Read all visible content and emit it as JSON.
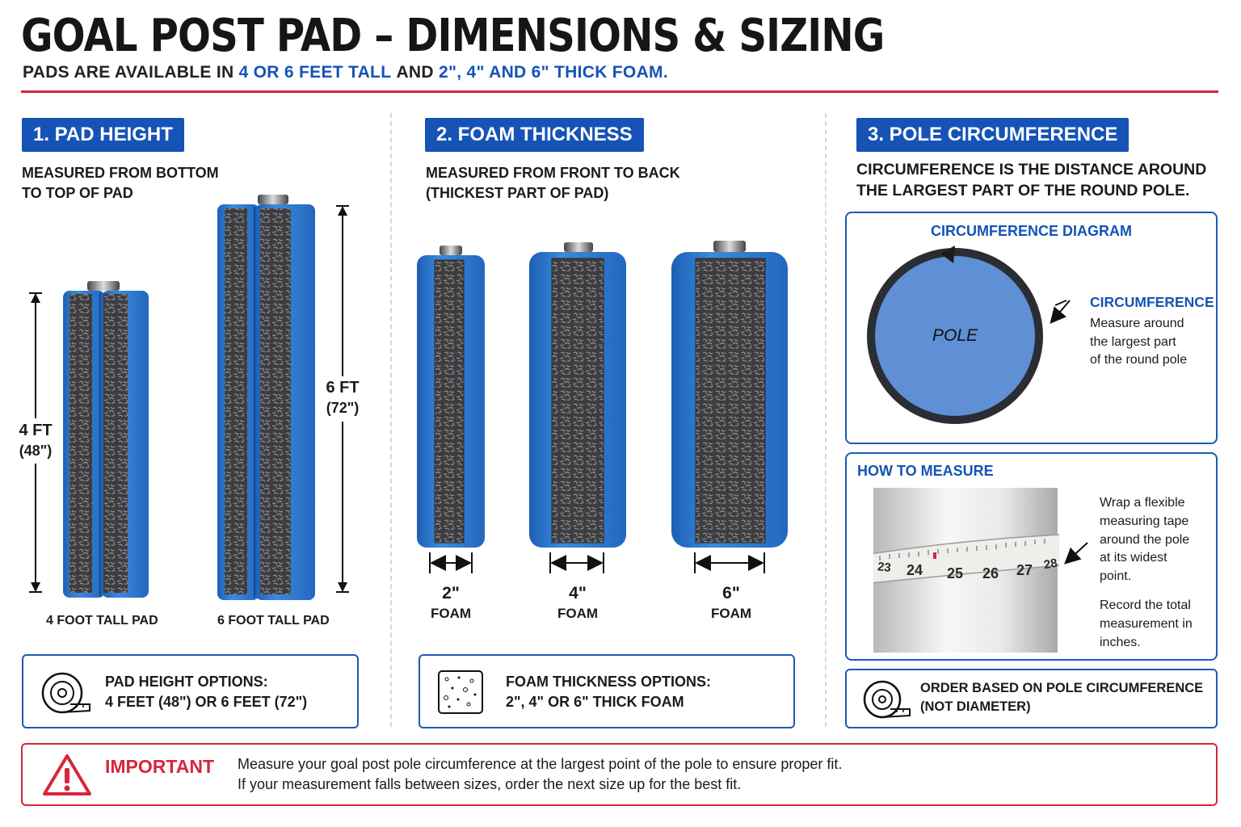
{
  "header": {
    "title": "GOAL POST PAD – DIMENSIONS & SIZING",
    "subtitle_lead": "PADS ARE AVAILABLE IN",
    "subtitle_hl1": "4 OR 6 FEET TALL",
    "subtitle_mid": "AND",
    "subtitle_hl2": "2\", 4\" AND 6\" THICK FOAM."
  },
  "section1": {
    "heading": "1. PAD HEIGHT",
    "sub_line1": "MEASURED FROM BOTTOM",
    "sub_line2": "TO TOP OF PAD",
    "dim4_main": "4 FT",
    "dim4_sub": "(48\")",
    "dim6_main": "6 FT",
    "dim6_sub": "(72\")",
    "label4": "4 FOOT TALL PAD",
    "label6": "6 FOOT TALL PAD",
    "options_title": "PAD HEIGHT OPTIONS:",
    "options_value": "4 FEET (48\") OR 6 FEET (72\")"
  },
  "section2": {
    "heading": "2. FOAM THICKNESS",
    "sub_line1": "MEASURED FROM FRONT TO BACK",
    "sub_line2": "(THICKEST PART OF PAD)",
    "foams": [
      {
        "size": "2\"",
        "label": "FOAM"
      },
      {
        "size": "4\"",
        "label": "FOAM"
      },
      {
        "size": "6\"",
        "label": "FOAM"
      }
    ],
    "options_title": "FOAM THICKNESS OPTIONS:",
    "options_value": "2\", 4\" OR 6\" THICK FOAM"
  },
  "section3": {
    "heading": "3. POLE CIRCUMFERENCE",
    "sub_line1": "CIRCUMFERENCE IS THE DISTANCE AROUND",
    "sub_line2": "THE LARGEST PART OF THE ROUND POLE.",
    "diagram_title": "CIRCUMFERENCE DIAGRAM",
    "pole_label": "POLE",
    "circ_label": "CIRCUMFERENCE",
    "circ_desc1": "Measure around",
    "circ_desc2": "the largest part",
    "circ_desc3": "of the round pole",
    "how_title": "HOW TO MEASURE",
    "tape_numbers": [
      "23",
      "24",
      "25",
      "26",
      "27",
      "28"
    ],
    "how_lines": [
      "Wrap a flexible",
      "measuring tape",
      "around the pole",
      "at its widest",
      "point."
    ],
    "record_lines": [
      "Record the total",
      "measurement in",
      "inches."
    ],
    "order_line1": "ORDER BASED ON POLE CIRCUMFERENCE",
    "order_line2": "(NOT DIAMETER)"
  },
  "important": {
    "label": "IMPORTANT",
    "line1": "Measure your goal post pole circumference at the largest point of the pole to ensure proper fit.",
    "line2": "If your measurement falls between sizes, order the next size up for the best fit."
  },
  "colors": {
    "brand_blue": "#1553b6",
    "pad_blue": "#2f7fd6",
    "accent_red": "#d7263d",
    "pole_fill": "#5f8fd4"
  },
  "icons": [
    "measuring-tape-icon",
    "foam-swatch-icon",
    "warning-triangle-icon"
  ]
}
